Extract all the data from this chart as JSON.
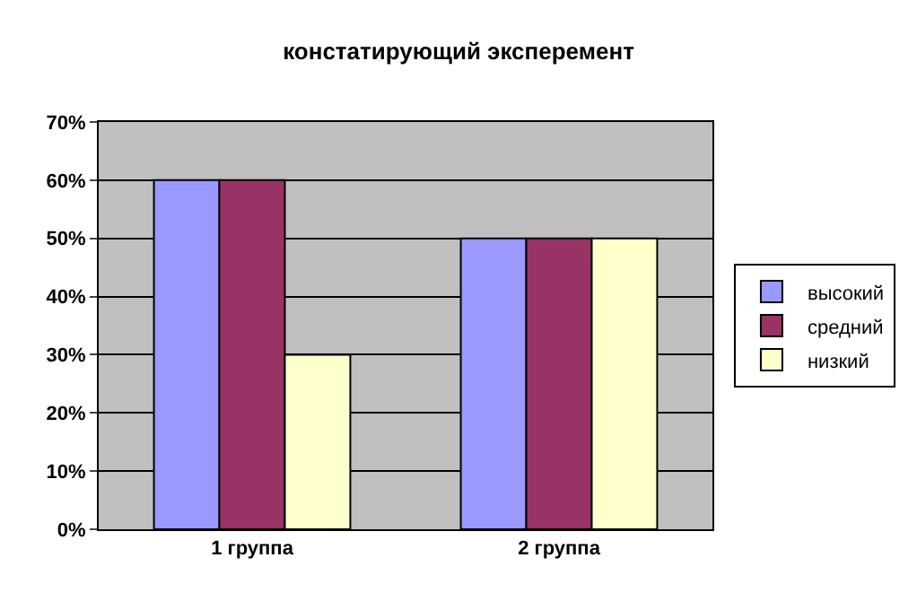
{
  "chart_data": {
    "type": "bar",
    "title": "констатирующий эксперемент",
    "categories": [
      "1 группа",
      "2 группа"
    ],
    "series": [
      {
        "name": "высокий",
        "color": "#9999ff",
        "values": [
          60,
          50
        ]
      },
      {
        "name": "средний",
        "color": "#993366",
        "values": [
          60,
          50
        ]
      },
      {
        "name": "низкий",
        "color": "#ffffcc",
        "values": [
          30,
          50
        ]
      }
    ],
    "ylim": [
      0,
      70
    ],
    "yticks": [
      {
        "value": 0,
        "label": "0%"
      },
      {
        "value": 10,
        "label": "10%"
      },
      {
        "value": 20,
        "label": "20%"
      },
      {
        "value": 30,
        "label": "30%"
      },
      {
        "value": 40,
        "label": "40%"
      },
      {
        "value": 50,
        "label": "50%"
      },
      {
        "value": 60,
        "label": "60%"
      },
      {
        "value": 70,
        "label": "70%"
      }
    ],
    "grid": "y",
    "legend": "right"
  }
}
